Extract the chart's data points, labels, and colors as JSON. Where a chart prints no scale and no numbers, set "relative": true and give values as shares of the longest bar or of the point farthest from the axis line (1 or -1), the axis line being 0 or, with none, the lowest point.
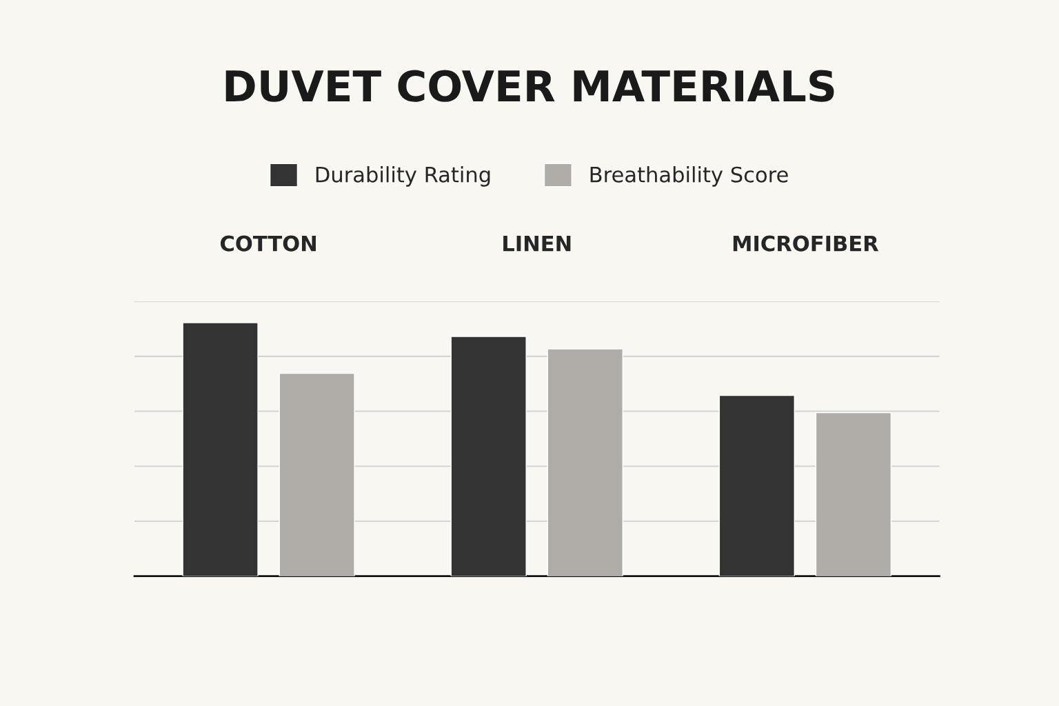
{
  "chart_data": {
    "type": "bar",
    "title": "DUVET COVER MATERIALS",
    "categories": [
      "COTTON",
      "LINEN",
      "MICROFIBER"
    ],
    "series": [
      {
        "name": "Durability Rating",
        "color": "#333333",
        "values": [
          1,
          0.946,
          0.713
        ]
      },
      {
        "name": "Breathability Score",
        "color": "#b0aca7",
        "values": [
          0.8,
          0.897,
          0.645
        ]
      }
    ],
    "relative": true,
    "grid": "y",
    "legend": "top"
  }
}
